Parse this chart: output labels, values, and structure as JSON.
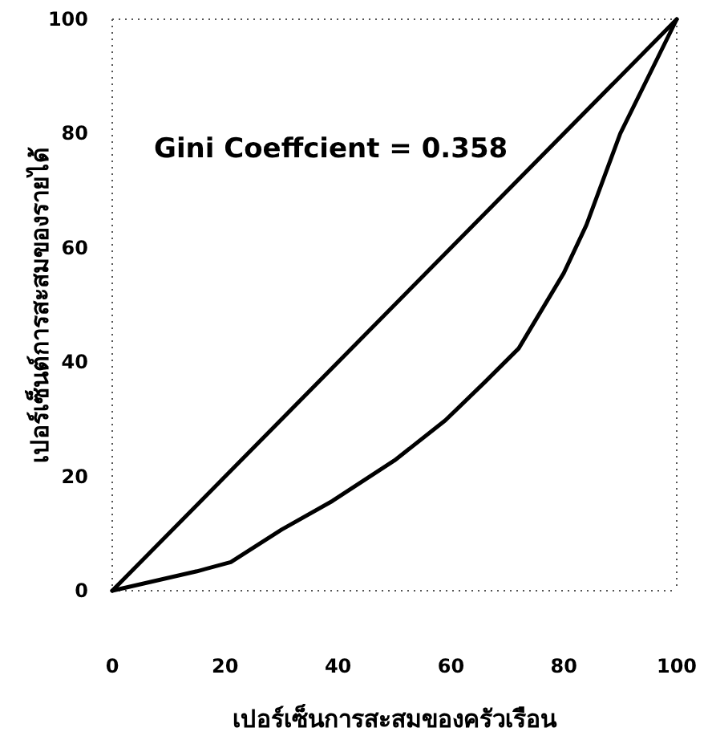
{
  "chart_data": {
    "type": "line",
    "xlabel": "เปอร์เซ็นการสะสมของครัวเรือน",
    "ylabel": "เปอร์เซ็นต์การสะสมของรายได้",
    "annotations": [
      "Gini Coeffcient = 0.358"
    ],
    "xlim": [
      0,
      100
    ],
    "ylim": [
      0,
      100
    ],
    "xticks": [
      0,
      20,
      40,
      60,
      80,
      100
    ],
    "yticks": [
      0,
      20,
      40,
      60,
      80,
      100
    ],
    "grid": false,
    "marker": "none",
    "line_style": "solid",
    "series": [
      {
        "color": "#000000",
        "x": [
          0,
          100
        ],
        "values": [
          0,
          100
        ]
      },
      {
        "color": "#000000",
        "x": [
          0,
          15,
          21,
          30,
          39,
          50,
          59,
          66,
          72,
          80,
          84,
          90,
          100
        ],
        "values": [
          0,
          3.4,
          5,
          10.7,
          15.7,
          22.8,
          29.8,
          36.5,
          42.4,
          55.6,
          64,
          80,
          100
        ]
      }
    ]
  }
}
